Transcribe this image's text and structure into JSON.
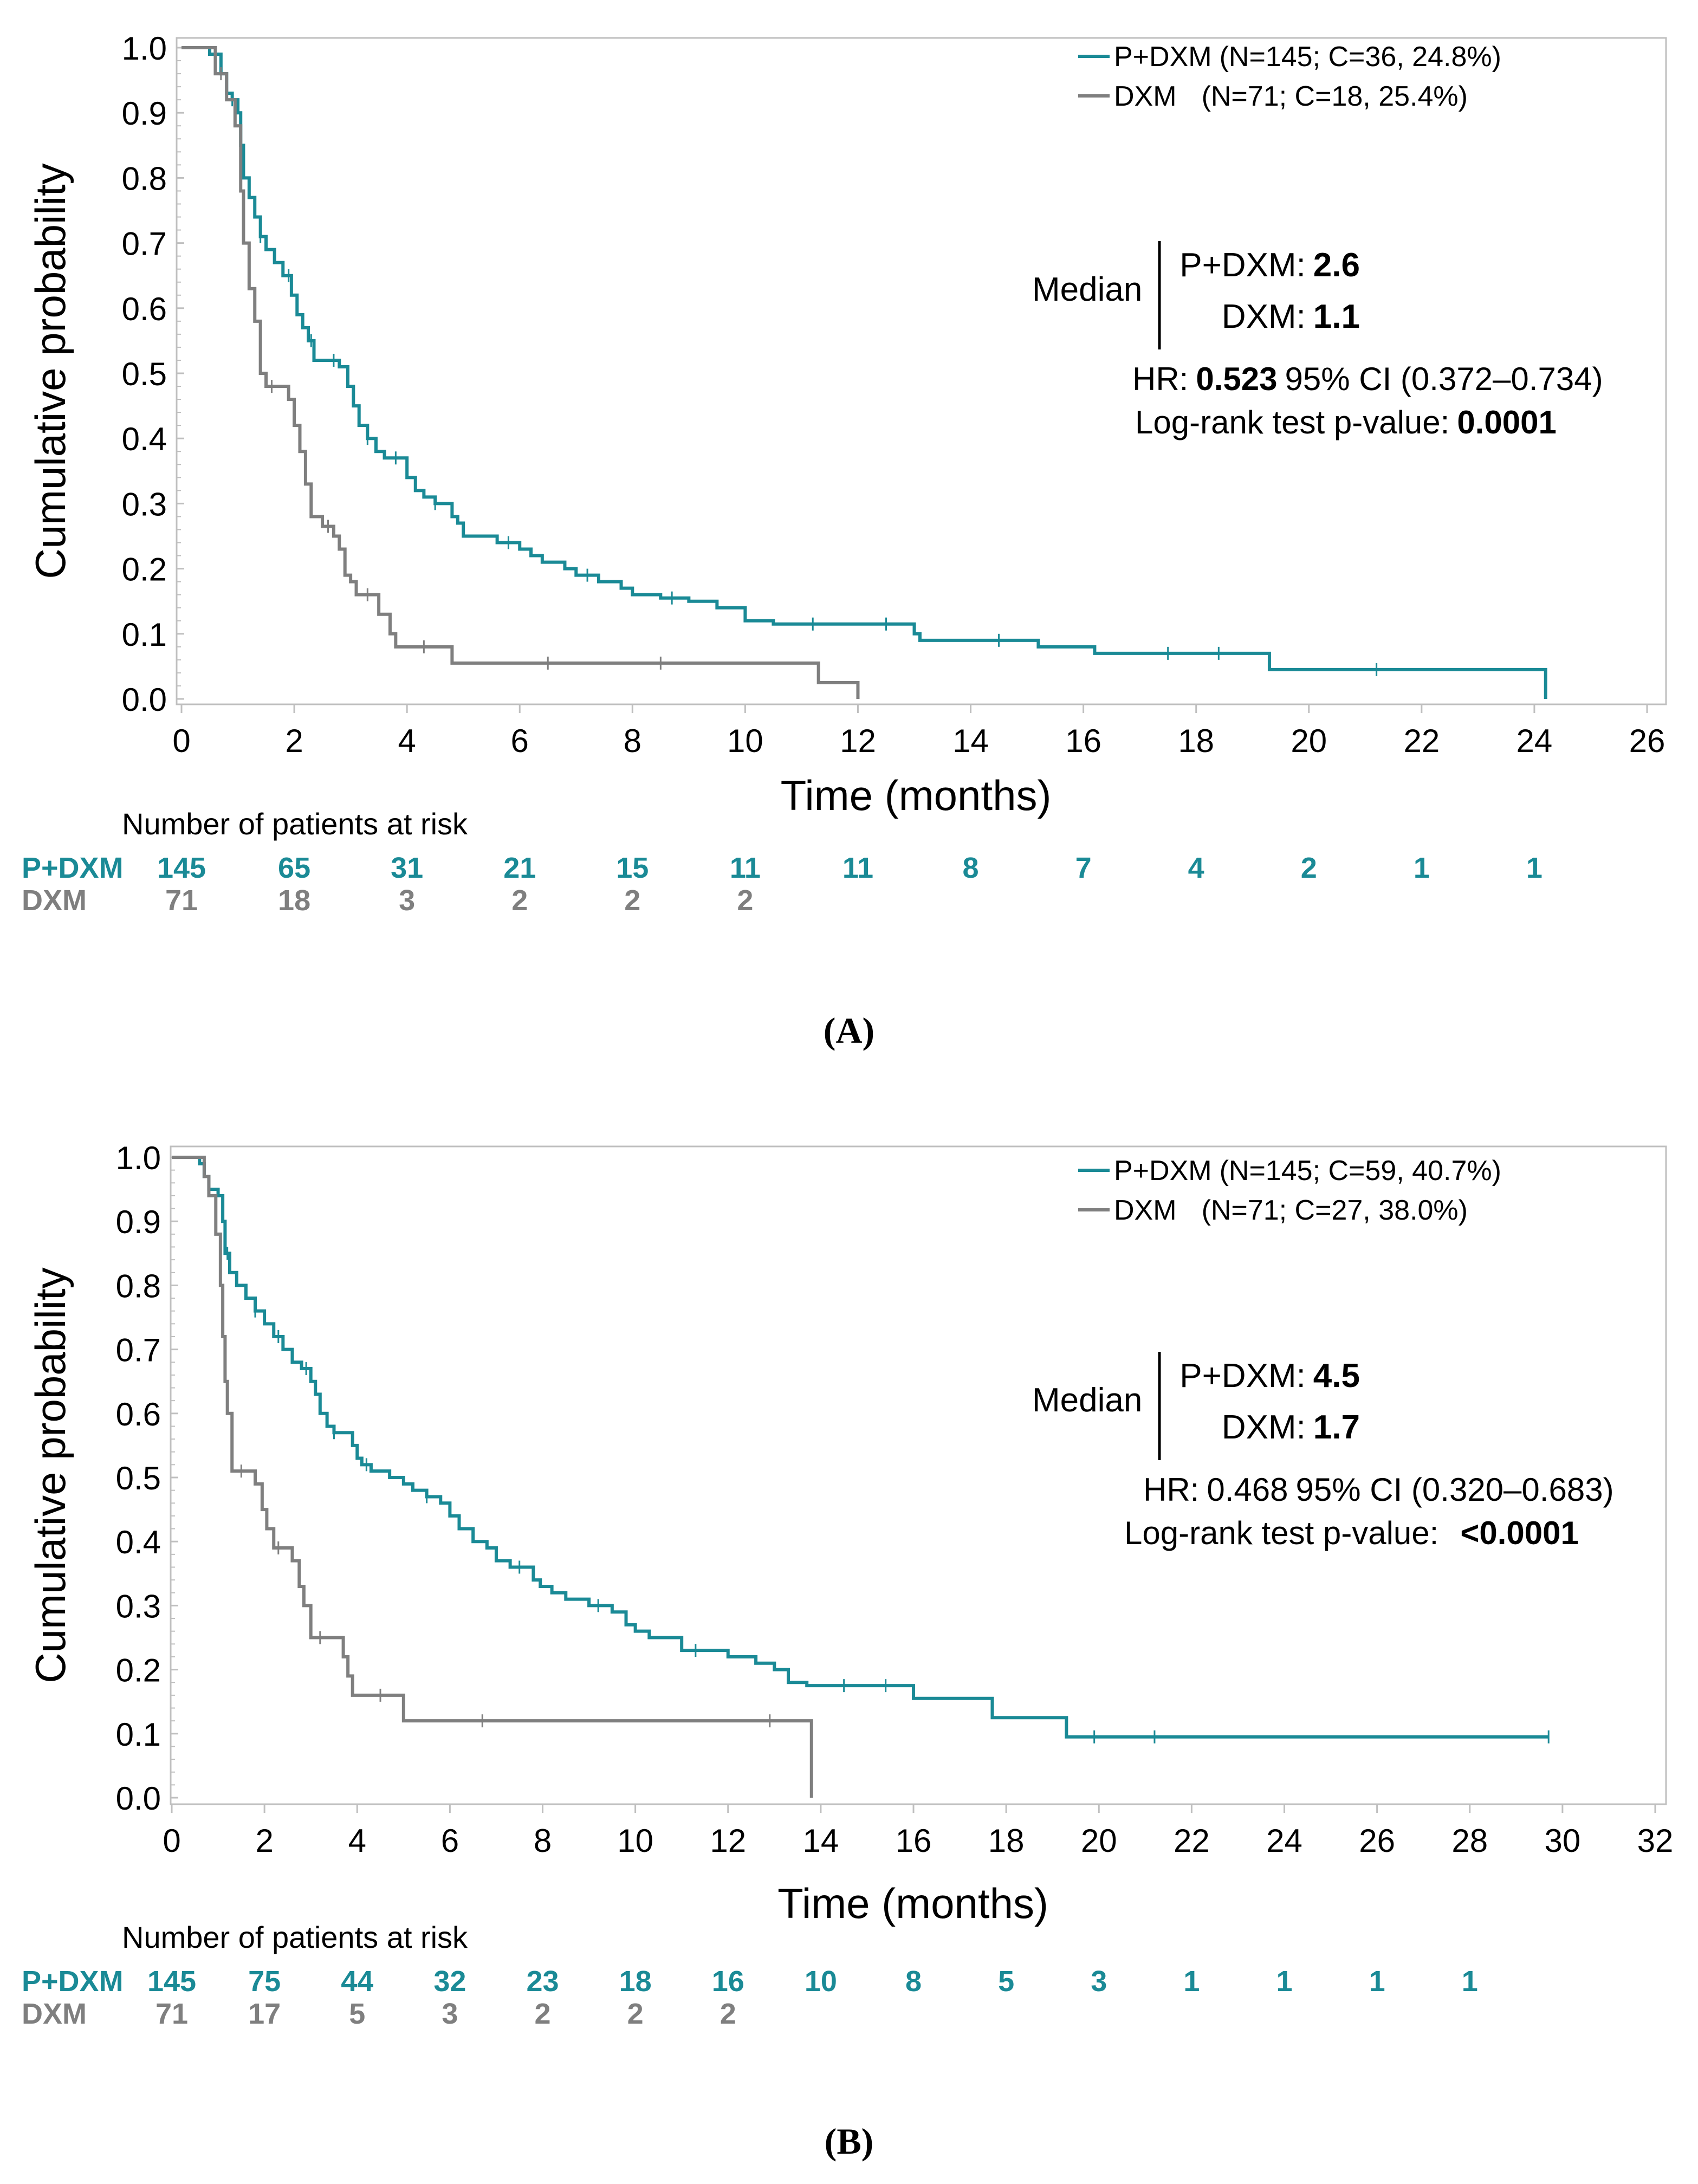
{
  "colors": {
    "pdxm": "#1a8a96",
    "dxm": "#7f7f7f",
    "axis": "#000000",
    "frame": "#bfbfbf"
  },
  "chart_data": [
    {
      "type": "line",
      "panel_label": "(A)",
      "ylabel": "Cumulative probability",
      "xlabel": "Time (months)",
      "xlim": [
        0,
        26
      ],
      "ylim": [
        0,
        1
      ],
      "x_ticks": [
        "0",
        "2",
        "4",
        "6",
        "8",
        "10",
        "12",
        "14",
        "16",
        "18",
        "20",
        "22",
        "24",
        "26"
      ],
      "y_ticks": [
        "0.0",
        "0.1",
        "0.2",
        "0.3",
        "0.4",
        "0.5",
        "0.6",
        "0.7",
        "0.8",
        "0.9",
        "1.0"
      ],
      "legend": {
        "pdxm_name": "P+DXM",
        "pdxm_stats": "(N=145; C=36, 24.8%)",
        "dxm_name": "DXM",
        "dxm_stats": "(N=71; C=18, 25.4%)"
      },
      "median": {
        "label": "Median",
        "pdxm_label": "P+DXM:",
        "pdxm_value": "2.6",
        "dxm_label": "DXM:",
        "dxm_value": "1.1"
      },
      "stats": {
        "hr_label": "HR:",
        "hr_value": "0.523",
        "ci": "95% CI (0.372–0.734)",
        "logrank_label": "Log-rank test p-value:",
        "logrank_value": "0.0001"
      },
      "series": [
        {
          "name": "P+DXM",
          "steps": [
            [
              0.2,
              1
            ],
            [
              0.5,
              0.99
            ],
            [
              0.7,
              0.96
            ],
            [
              0.8,
              0.93
            ],
            [
              0.9,
              0.92
            ],
            [
              1.0,
              0.9
            ],
            [
              1.05,
              0.85
            ],
            [
              1.1,
              0.8
            ],
            [
              1.2,
              0.77
            ],
            [
              1.3,
              0.74
            ],
            [
              1.4,
              0.71
            ],
            [
              1.5,
              0.69
            ],
            [
              1.65,
              0.67
            ],
            [
              1.8,
              0.65
            ],
            [
              1.95,
              0.62
            ],
            [
              2.05,
              0.59
            ],
            [
              2.15,
              0.57
            ],
            [
              2.25,
              0.55
            ],
            [
              2.35,
              0.52
            ],
            [
              2.8,
              0.51
            ],
            [
              2.95,
              0.48
            ],
            [
              3.05,
              0.45
            ],
            [
              3.15,
              0.42
            ],
            [
              3.3,
              0.4
            ],
            [
              3.45,
              0.38
            ],
            [
              3.6,
              0.37
            ],
            [
              4.0,
              0.34
            ],
            [
              4.15,
              0.32
            ],
            [
              4.3,
              0.31
            ],
            [
              4.5,
              0.3
            ],
            [
              4.8,
              0.28
            ],
            [
              4.9,
              0.27
            ],
            [
              5.0,
              0.25
            ],
            [
              5.6,
              0.24
            ],
            [
              6.0,
              0.23
            ],
            [
              6.2,
              0.22
            ],
            [
              6.4,
              0.21
            ],
            [
              6.8,
              0.2
            ],
            [
              7.0,
              0.19
            ],
            [
              7.4,
              0.18
            ],
            [
              7.8,
              0.17
            ],
            [
              8.0,
              0.16
            ],
            [
              8.5,
              0.155
            ],
            [
              9.0,
              0.15
            ],
            [
              9.5,
              0.14
            ],
            [
              10.0,
              0.12
            ],
            [
              10.5,
              0.115
            ],
            [
              13.0,
              0.1
            ],
            [
              13.1,
              0.09
            ],
            [
              15.2,
              0.08
            ],
            [
              16.2,
              0.07
            ],
            [
              19.3,
              0.045
            ],
            [
              24.2,
              0.045
            ],
            [
              24.2,
              0.0
            ]
          ],
          "censor_x": [
            0.9,
            1.4,
            1.9,
            2.3,
            2.7,
            3.3,
            3.8,
            4.5,
            5.8,
            7.2,
            8.7,
            11.2,
            12.5,
            14.5,
            17.5,
            18.4,
            21.2
          ]
        },
        {
          "name": "DXM",
          "steps": [
            [
              0.2,
              1
            ],
            [
              0.6,
              0.96
            ],
            [
              0.8,
              0.92
            ],
            [
              0.95,
              0.88
            ],
            [
              1.05,
              0.78
            ],
            [
              1.1,
              0.7
            ],
            [
              1.2,
              0.63
            ],
            [
              1.3,
              0.58
            ],
            [
              1.4,
              0.5
            ],
            [
              1.5,
              0.48
            ],
            [
              1.9,
              0.46
            ],
            [
              2.0,
              0.42
            ],
            [
              2.1,
              0.38
            ],
            [
              2.2,
              0.33
            ],
            [
              2.3,
              0.28
            ],
            [
              2.5,
              0.265
            ],
            [
              2.7,
              0.25
            ],
            [
              2.8,
              0.23
            ],
            [
              2.9,
              0.19
            ],
            [
              3.0,
              0.18
            ],
            [
              3.1,
              0.16
            ],
            [
              3.5,
              0.13
            ],
            [
              3.7,
              0.1
            ],
            [
              3.8,
              0.08
            ],
            [
              4.8,
              0.055
            ],
            [
              11.3,
              0.025
            ],
            [
              12.0,
              0.0
            ]
          ],
          "censor_x": [
            0.7,
            1.6,
            2.6,
            3.3,
            4.3,
            6.5,
            8.5
          ]
        }
      ],
      "risk_table": {
        "title": "Number of patients at risk",
        "rows": [
          {
            "label": "P+DXM",
            "values": [
              "145",
              "65",
              "31",
              "21",
              "15",
              "11",
              "11",
              "8",
              "7",
              "4",
              "2",
              "1",
              "1"
            ]
          },
          {
            "label": "DXM",
            "values": [
              "71",
              "18",
              "3",
              "2",
              "2",
              "2"
            ]
          }
        ]
      }
    },
    {
      "type": "line",
      "panel_label": "(B)",
      "ylabel": "Cumulative probability",
      "xlabel": "Time (months)",
      "xlim": [
        0,
        32
      ],
      "ylim": [
        0,
        1
      ],
      "x_ticks": [
        "0",
        "2",
        "4",
        "6",
        "8",
        "10",
        "12",
        "14",
        "16",
        "18",
        "20",
        "22",
        "24",
        "26",
        "28",
        "30",
        "32"
      ],
      "y_ticks": [
        "0.0",
        "0.1",
        "0.2",
        "0.3",
        "0.4",
        "0.5",
        "0.6",
        "0.7",
        "0.8",
        "0.9",
        "1.0"
      ],
      "legend": {
        "pdxm_name": "P+DXM",
        "pdxm_stats": "(N=145; C=59, 40.7%)",
        "dxm_name": "DXM",
        "dxm_stats": "(N=71; C=27, 38.0%)"
      },
      "median": {
        "label": "Median",
        "pdxm_label": "P+DXM:",
        "pdxm_value": "4.5",
        "dxm_label": "DXM:",
        "dxm_value": "1.7"
      },
      "stats": {
        "hr_label": "HR:",
        "hr_value": "0.468",
        "ci": "95% CI (0.320–0.683)",
        "logrank_label": "Log-rank test p-value:",
        "logrank_value": "<0.0001"
      },
      "series": [
        {
          "name": "P+DXM",
          "steps": [
            [
              0.5,
              1
            ],
            [
              0.6,
              0.99
            ],
            [
              0.7,
              0.97
            ],
            [
              0.8,
              0.95
            ],
            [
              1.0,
              0.94
            ],
            [
              1.1,
              0.9
            ],
            [
              1.15,
              0.85
            ],
            [
              1.25,
              0.82
            ],
            [
              1.4,
              0.8
            ],
            [
              1.6,
              0.78
            ],
            [
              1.8,
              0.76
            ],
            [
              2.0,
              0.74
            ],
            [
              2.2,
              0.72
            ],
            [
              2.4,
              0.7
            ],
            [
              2.6,
              0.68
            ],
            [
              2.8,
              0.67
            ],
            [
              3.0,
              0.65
            ],
            [
              3.1,
              0.63
            ],
            [
              3.2,
              0.6
            ],
            [
              3.35,
              0.58
            ],
            [
              3.5,
              0.57
            ],
            [
              3.9,
              0.55
            ],
            [
              4.0,
              0.53
            ],
            [
              4.1,
              0.52
            ],
            [
              4.3,
              0.51
            ],
            [
              4.7,
              0.5
            ],
            [
              5.0,
              0.49
            ],
            [
              5.2,
              0.48
            ],
            [
              5.5,
              0.47
            ],
            [
              5.8,
              0.46
            ],
            [
              6.0,
              0.44
            ],
            [
              6.2,
              0.42
            ],
            [
              6.5,
              0.4
            ],
            [
              6.8,
              0.39
            ],
            [
              7.0,
              0.37
            ],
            [
              7.3,
              0.36
            ],
            [
              7.8,
              0.34
            ],
            [
              7.95,
              0.33
            ],
            [
              8.2,
              0.32
            ],
            [
              8.5,
              0.31
            ],
            [
              9.0,
              0.3
            ],
            [
              9.5,
              0.29
            ],
            [
              9.8,
              0.27
            ],
            [
              10.0,
              0.26
            ],
            [
              10.3,
              0.25
            ],
            [
              11.0,
              0.23
            ],
            [
              12.0,
              0.22
            ],
            [
              12.6,
              0.21
            ],
            [
              13.0,
              0.2
            ],
            [
              13.3,
              0.18
            ],
            [
              13.7,
              0.175
            ],
            [
              16.0,
              0.155
            ],
            [
              17.7,
              0.125
            ],
            [
              19.3,
              0.095
            ],
            [
              29.7,
              0.095
            ]
          ],
          "censor_x": [
            1.2,
            1.8,
            2.3,
            2.9,
            3.5,
            4.2,
            5.5,
            7.5,
            9.2,
            11.3,
            14.5,
            15.4,
            19.9,
            21.2,
            29.7
          ]
        },
        {
          "name": "DXM",
          "steps": [
            [
              0.5,
              1
            ],
            [
              0.7,
              0.97
            ],
            [
              0.8,
              0.94
            ],
            [
              0.95,
              0.88
            ],
            [
              1.05,
              0.8
            ],
            [
              1.1,
              0.72
            ],
            [
              1.15,
              0.65
            ],
            [
              1.2,
              0.6
            ],
            [
              1.3,
              0.51
            ],
            [
              1.8,
              0.49
            ],
            [
              1.95,
              0.45
            ],
            [
              2.05,
              0.42
            ],
            [
              2.2,
              0.39
            ],
            [
              2.6,
              0.37
            ],
            [
              2.75,
              0.33
            ],
            [
              2.85,
              0.3
            ],
            [
              3.0,
              0.25
            ],
            [
              3.7,
              0.22
            ],
            [
              3.8,
              0.19
            ],
            [
              3.9,
              0.16
            ],
            [
              5.0,
              0.12
            ],
            [
              13.8,
              0.12
            ],
            [
              13.8,
              0.0
            ]
          ],
          "censor_x": [
            1.5,
            2.3,
            3.2,
            4.5,
            6.7,
            12.9
          ]
        }
      ],
      "risk_table": {
        "title": "Number of patients at risk",
        "rows": [
          {
            "label": "P+DXM",
            "values": [
              "145",
              "75",
              "44",
              "32",
              "23",
              "18",
              "16",
              "10",
              "8",
              "5",
              "3",
              "1",
              "1",
              "1",
              "1"
            ]
          },
          {
            "label": "DXM",
            "values": [
              "71",
              "17",
              "5",
              "3",
              "2",
              "2",
              "2"
            ]
          }
        ]
      }
    }
  ]
}
